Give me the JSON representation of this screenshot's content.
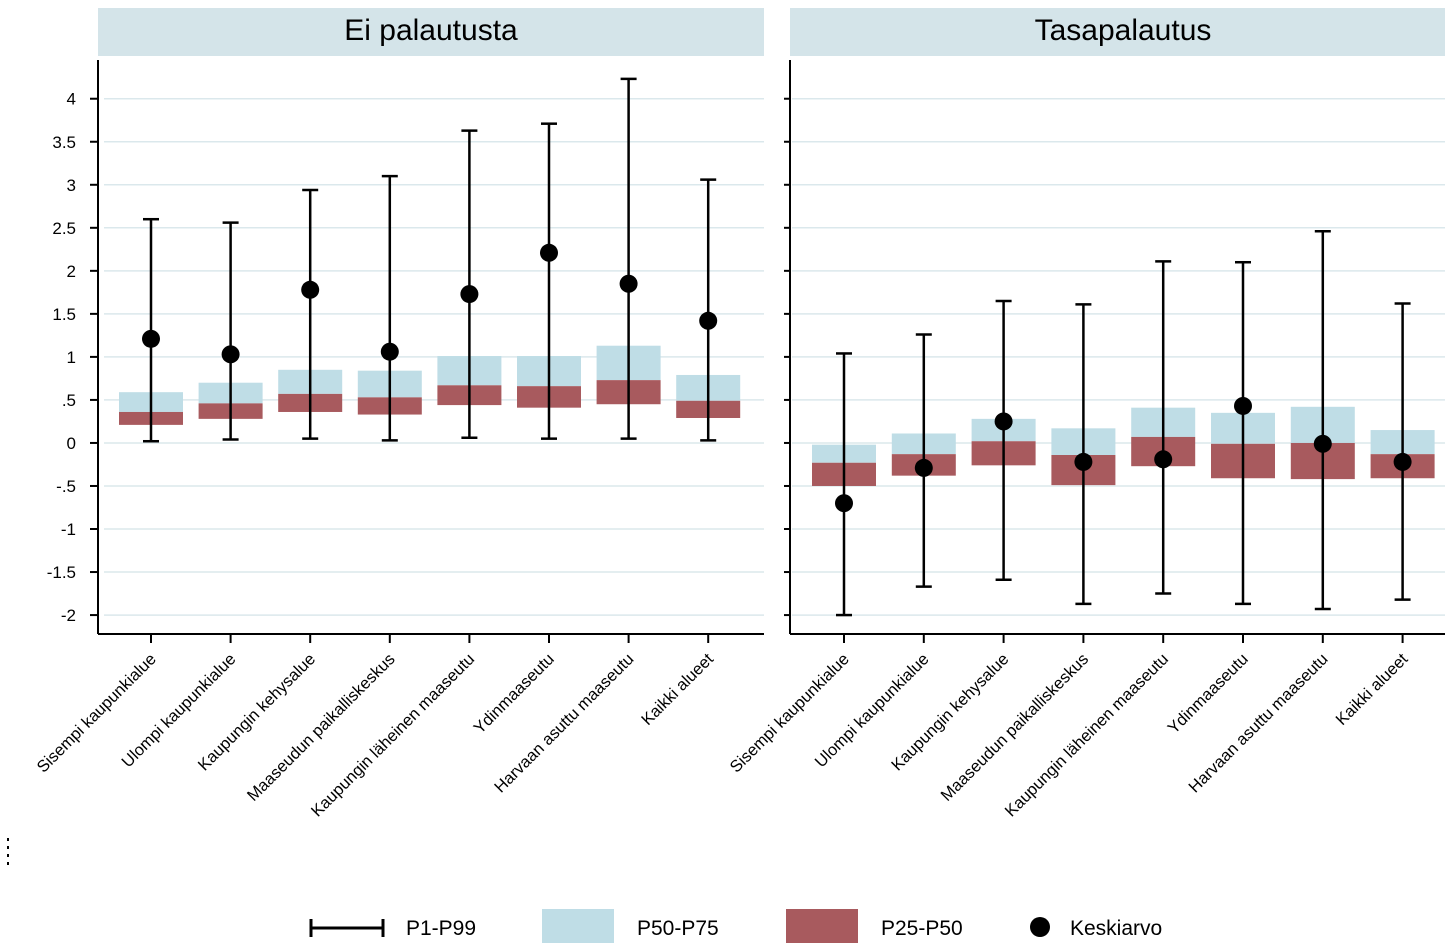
{
  "chart_data": [
    {
      "type": "boxplot",
      "title": "Ei palautusta",
      "categories": [
        "Sisempi kaupunkialue",
        "Ulompi kaupunkialue",
        "Kaupungin kehysalue",
        "Maaseudun paikalliskeskus",
        "Kaupungin läheinen maaseutu",
        "Ydinmaaseutu",
        "Harvaan asuttu maaseutu",
        "Kaikki alueet"
      ],
      "yticks": [
        "4",
        "3.5",
        "3",
        "2.5",
        "2",
        "1.5",
        "1",
        ".5",
        "0",
        "-.5",
        "-1",
        "-1.5",
        "-2"
      ],
      "ylim": [
        -2.22,
        4.45
      ],
      "p1": [
        0.02,
        0.04,
        0.05,
        0.03,
        0.06,
        0.05,
        0.05,
        0.03
      ],
      "p25": [
        0.21,
        0.28,
        0.36,
        0.33,
        0.44,
        0.41,
        0.45,
        0.29
      ],
      "p50": [
        0.36,
        0.46,
        0.57,
        0.53,
        0.67,
        0.66,
        0.73,
        0.49
      ],
      "p75": [
        0.59,
        0.7,
        0.85,
        0.84,
        1.01,
        1.01,
        1.13,
        0.79
      ],
      "p99": [
        2.6,
        2.56,
        2.94,
        3.1,
        3.63,
        3.71,
        4.23,
        3.06
      ],
      "mean": [
        1.21,
        1.03,
        1.78,
        1.06,
        1.73,
        2.21,
        1.85,
        1.42
      ]
    },
    {
      "type": "boxplot",
      "title": "Tasapalautus",
      "categories": [
        "Sisempi kaupunkialue",
        "Ulompi kaupunkialue",
        "Kaupungin kehysalue",
        "Maaseudun paikalliskeskus",
        "Kaupungin läheinen maaseutu",
        "Ydinmaaseutu",
        "Harvaan asuttu maaseutu",
        "Kaikki alueet"
      ],
      "ylim": [
        -2.22,
        4.45
      ],
      "p1": [
        -2.0,
        -1.67,
        -1.59,
        -1.87,
        -1.75,
        -1.87,
        -1.93,
        -1.82
      ],
      "p25": [
        -0.5,
        -0.38,
        -0.26,
        -0.49,
        -0.27,
        -0.41,
        -0.42,
        -0.41
      ],
      "p50": [
        -0.23,
        -0.13,
        0.02,
        -0.14,
        0.07,
        -0.01,
        0.0,
        -0.13
      ],
      "p75": [
        -0.02,
        0.11,
        0.28,
        0.17,
        0.41,
        0.35,
        0.42,
        0.15
      ],
      "p99": [
        1.04,
        1.26,
        1.65,
        1.61,
        2.11,
        2.1,
        2.46,
        1.62
      ],
      "mean": [
        -0.7,
        -0.29,
        0.25,
        -0.22,
        -0.19,
        0.43,
        -0.01,
        -0.22
      ]
    }
  ],
  "legend": {
    "items": [
      {
        "label": "P1-P99",
        "kind": "whisker",
        "color": "#000000"
      },
      {
        "label": "P50-P75",
        "kind": "box",
        "color": "#bfdde6"
      },
      {
        "label": "P25-P50",
        "kind": "box",
        "color": "#a85a5e"
      },
      {
        "label": "Keskiarvo",
        "kind": "dot",
        "color": "#000000"
      }
    ]
  },
  "colors": {
    "header_bg": "#d4e4e9",
    "upper_box": "#bfdde6",
    "lower_box": "#a85a5e",
    "grid": "#dbe8ec",
    "axis": "#000000"
  }
}
